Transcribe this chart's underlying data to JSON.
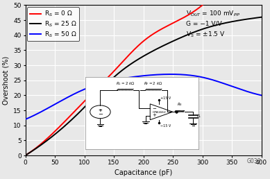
{
  "xlabel": "Capacitance (pF)",
  "ylabel": "Overshoot (%)",
  "xlim": [
    0,
    400
  ],
  "ylim": [
    0,
    50
  ],
  "xticks": [
    0,
    50,
    100,
    150,
    200,
    250,
    300,
    350,
    400
  ],
  "yticks": [
    0,
    5,
    10,
    15,
    20,
    25,
    30,
    35,
    40,
    45,
    50
  ],
  "annotation_lines": [
    "V$_{OUT}$ = 100 mV$_{PP}$",
    "G = −1 V/V",
    "V$_S$ = ±1.5 V"
  ],
  "legend_labels": [
    "R$_S$ = 0 Ω",
    "R$_S$ = 25 Ω",
    "R$_S$ = 50 Ω"
  ],
  "line_colors": [
    "red",
    "black",
    "blue"
  ],
  "watermark": "G033",
  "bg_color": "#e8e8e8",
  "grid_color": "white",
  "rs0_points_x": [
    0,
    50,
    100,
    150,
    200,
    250,
    300
  ],
  "rs0_points_y": [
    0,
    8,
    18,
    28,
    38,
    44,
    50
  ],
  "rs25_points_x": [
    0,
    50,
    100,
    150,
    200,
    250,
    300,
    350,
    400
  ],
  "rs25_points_y": [
    0,
    7,
    16,
    26,
    33,
    38,
    42,
    44.5,
    46
  ],
  "rs50_points_x": [
    0,
    50,
    100,
    150,
    200,
    250,
    300,
    350,
    400
  ],
  "rs50_points_y": [
    12,
    17,
    22,
    25,
    26.5,
    27,
    26,
    23,
    20
  ]
}
